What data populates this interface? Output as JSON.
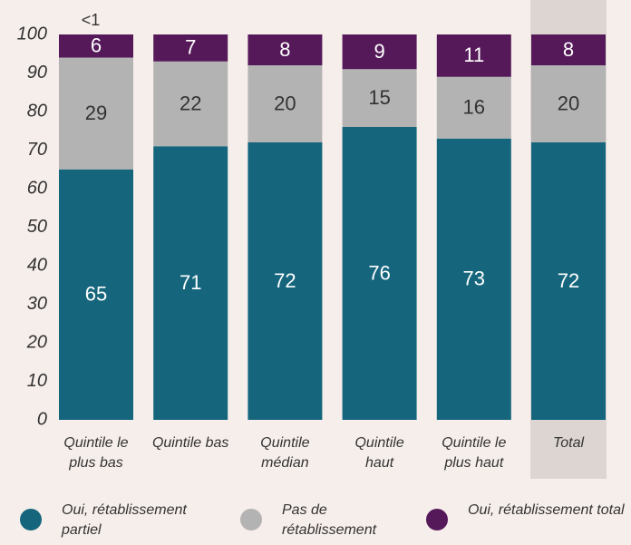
{
  "chart_data": {
    "type": "stacked_bar",
    "categories": [
      "Quintile le plus bas",
      "Quintile bas",
      "Quintile médian",
      "Quintile haut",
      "Quintile le plus haut",
      "Total"
    ],
    "series": [
      {
        "name": "Oui, rétablissement partiel",
        "color": "#15667d",
        "values": [
          65,
          71,
          72,
          76,
          73,
          72
        ]
      },
      {
        "name": "Pas de rétablissement",
        "color": "#b3b3b3",
        "values": [
          29,
          22,
          20,
          15,
          16,
          20
        ]
      },
      {
        "name": "Oui, rétablissement total",
        "color": "#55195a",
        "values": [
          6,
          7,
          8,
          9,
          11,
          8
        ]
      }
    ],
    "annotations": [
      "<1"
    ],
    "highlight_category": "Total",
    "ylim": [
      0,
      100
    ],
    "yticks": [
      0,
      10,
      20,
      30,
      40,
      50,
      60,
      70,
      80,
      90,
      100
    ]
  }
}
